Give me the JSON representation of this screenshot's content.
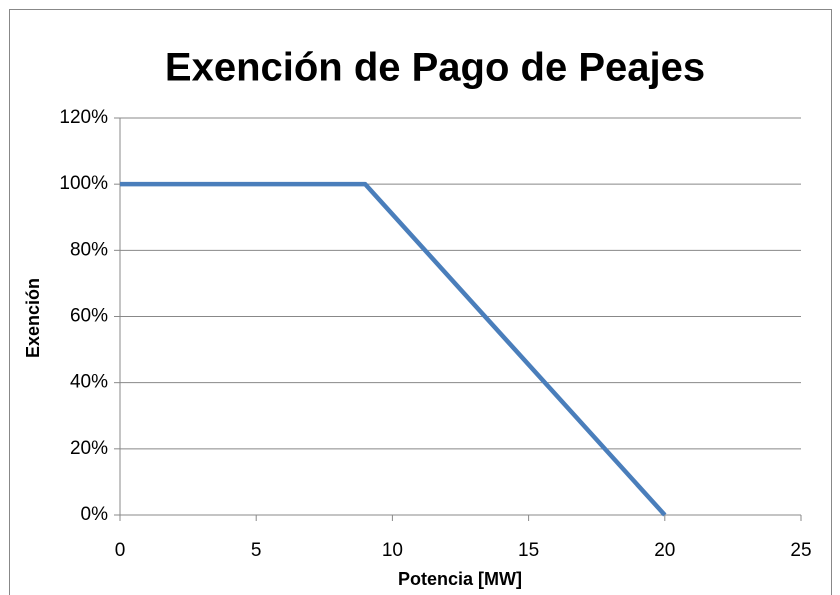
{
  "chart_data": {
    "type": "line",
    "title": "Exención de Pago de Peajes",
    "x_label": "Potencia [MW]",
    "y_label": "Exención",
    "x": [
      0,
      9,
      20
    ],
    "series": [
      {
        "name": "Exención",
        "color": "#4a7ebb",
        "values": [
          100,
          100,
          0
        ]
      }
    ],
    "xlim": [
      0,
      25
    ],
    "xticks": [
      0,
      5,
      10,
      15,
      20,
      25
    ],
    "ylim": [
      0,
      120
    ],
    "yticks": [
      {
        "value": 0,
        "label": "0%"
      },
      {
        "value": 20,
        "label": "20%"
      },
      {
        "value": 40,
        "label": "40%"
      },
      {
        "value": 60,
        "label": "60%"
      },
      {
        "value": 80,
        "label": "80%"
      },
      {
        "value": 100,
        "label": "100%"
      },
      {
        "value": 120,
        "label": "120%"
      }
    ],
    "grid": true
  }
}
